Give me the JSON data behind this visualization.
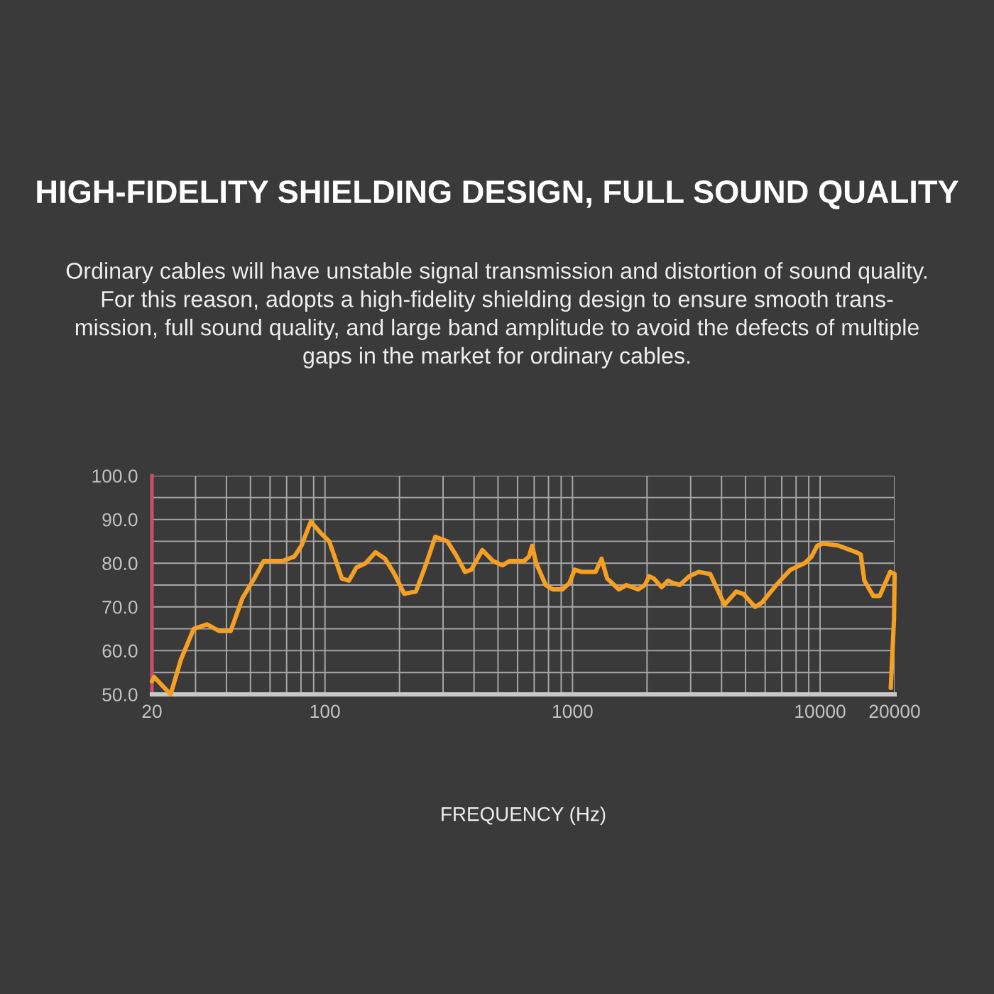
{
  "chart_data": {
    "type": "line",
    "title": "HIGH-FIDELITY SHIELDING DESIGN, FULL SOUND QUALITY",
    "subtitle": "Ordinary cables will have unstable signal transmission and distortion of sound quality.\nFor this reason, adopts a high-fidelity shielding design to ensure smooth trans-\nmission, full sound quality, and large band amplitude to avoid the defects of multiple\ngaps in the market for ordinary cables.",
    "xlabel": "FREQUENCY (Hz)",
    "x": [
      20,
      20.4,
      23.8,
      26.2,
      29.5,
      33.4,
      37.3,
      41.6,
      46.4,
      51.8,
      56.6,
      67.4,
      75.2,
      80.3,
      87.7,
      95.7,
      104,
      107,
      117,
      125,
      134,
      146,
      160,
      175,
      191,
      209,
      233,
      255,
      279,
      312,
      341,
      368,
      390,
      432,
      477,
      521,
      557,
      637,
      667,
      687,
      713,
      779,
      832,
      910,
      973,
      1020,
      1090,
      1240,
      1310,
      1380,
      1540,
      1650,
      1840,
      1960,
      2040,
      2130,
      2290,
      2430,
      2540,
      2710,
      2960,
      3230,
      3600,
      3850,
      4110,
      4580,
      4890,
      5460,
      5830,
      6650,
      7590,
      8660,
      9240,
      9740,
      10300,
      11900,
      14000,
      14600,
      15100,
      16400,
      17400,
      19200,
      20000,
      19900,
      19300
    ],
    "series": [
      {
        "color": "#f5a023",
        "values": [
          53,
          54,
          50,
          58,
          65,
          66,
          64.5,
          64.5,
          72,
          76.5,
          80.5,
          80.5,
          81.5,
          84,
          89.5,
          87,
          85,
          83,
          76.5,
          76,
          79,
          80,
          82.5,
          81,
          77.5,
          73,
          73.5,
          79.5,
          86,
          85,
          81.5,
          78,
          78.5,
          83,
          80.5,
          79.5,
          80.5,
          80.5,
          81.5,
          84,
          80,
          75,
          74,
          74,
          75.5,
          78.5,
          78,
          78,
          81,
          76.5,
          74,
          75,
          74,
          75,
          77,
          76.5,
          74.5,
          76,
          75.5,
          75,
          77,
          78,
          77.5,
          74,
          70.5,
          73.5,
          73,
          70,
          71,
          75,
          78.5,
          80,
          81.5,
          84,
          84.5,
          84,
          82.5,
          82,
          76,
          72.5,
          72.5,
          78,
          77.5,
          67.5,
          51.5
        ]
      }
    ],
    "log": "x",
    "xlim": [
      20,
      20000
    ],
    "ylim": [
      50,
      100
    ],
    "xticks": [
      20,
      {
        "value": 30,
        "label": null
      },
      {
        "value": 40,
        "label": null
      },
      {
        "value": 50,
        "label": null
      },
      {
        "value": 60,
        "label": null
      },
      {
        "value": 70,
        "label": null
      },
      {
        "value": 80,
        "label": null
      },
      {
        "value": 90,
        "label": null
      },
      100,
      {
        "value": 200,
        "label": null
      },
      {
        "value": 300,
        "label": null
      },
      {
        "value": 400,
        "label": null
      },
      {
        "value": 500,
        "label": null
      },
      {
        "value": 600,
        "label": null
      },
      {
        "value": 700,
        "label": null
      },
      {
        "value": 800,
        "label": null
      },
      {
        "value": 900,
        "label": null
      },
      1000,
      {
        "value": 2000,
        "label": null
      },
      {
        "value": 3000,
        "label": null
      },
      {
        "value": 4000,
        "label": null
      },
      {
        "value": 5000,
        "label": null
      },
      {
        "value": 6000,
        "label": null
      },
      {
        "value": 7000,
        "label": null
      },
      {
        "value": 8000,
        "label": null
      },
      {
        "value": 9000,
        "label": null
      },
      10000,
      20000
    ],
    "yticks": [
      {
        "value": 50,
        "label": "50.0"
      },
      {
        "value": 55,
        "label": null
      },
      {
        "value": 60,
        "label": "60.0"
      },
      {
        "value": 65,
        "label": null
      },
      {
        "value": 70,
        "label": "70.0"
      },
      {
        "value": 75,
        "label": null
      },
      {
        "value": 80,
        "label": "80.0"
      },
      {
        "value": 85,
        "label": null
      },
      {
        "value": 90,
        "label": "90.0"
      },
      {
        "value": 95,
        "label": null
      },
      {
        "value": 100,
        "label": "100.0"
      }
    ],
    "grid": true,
    "line_style": "solid"
  }
}
